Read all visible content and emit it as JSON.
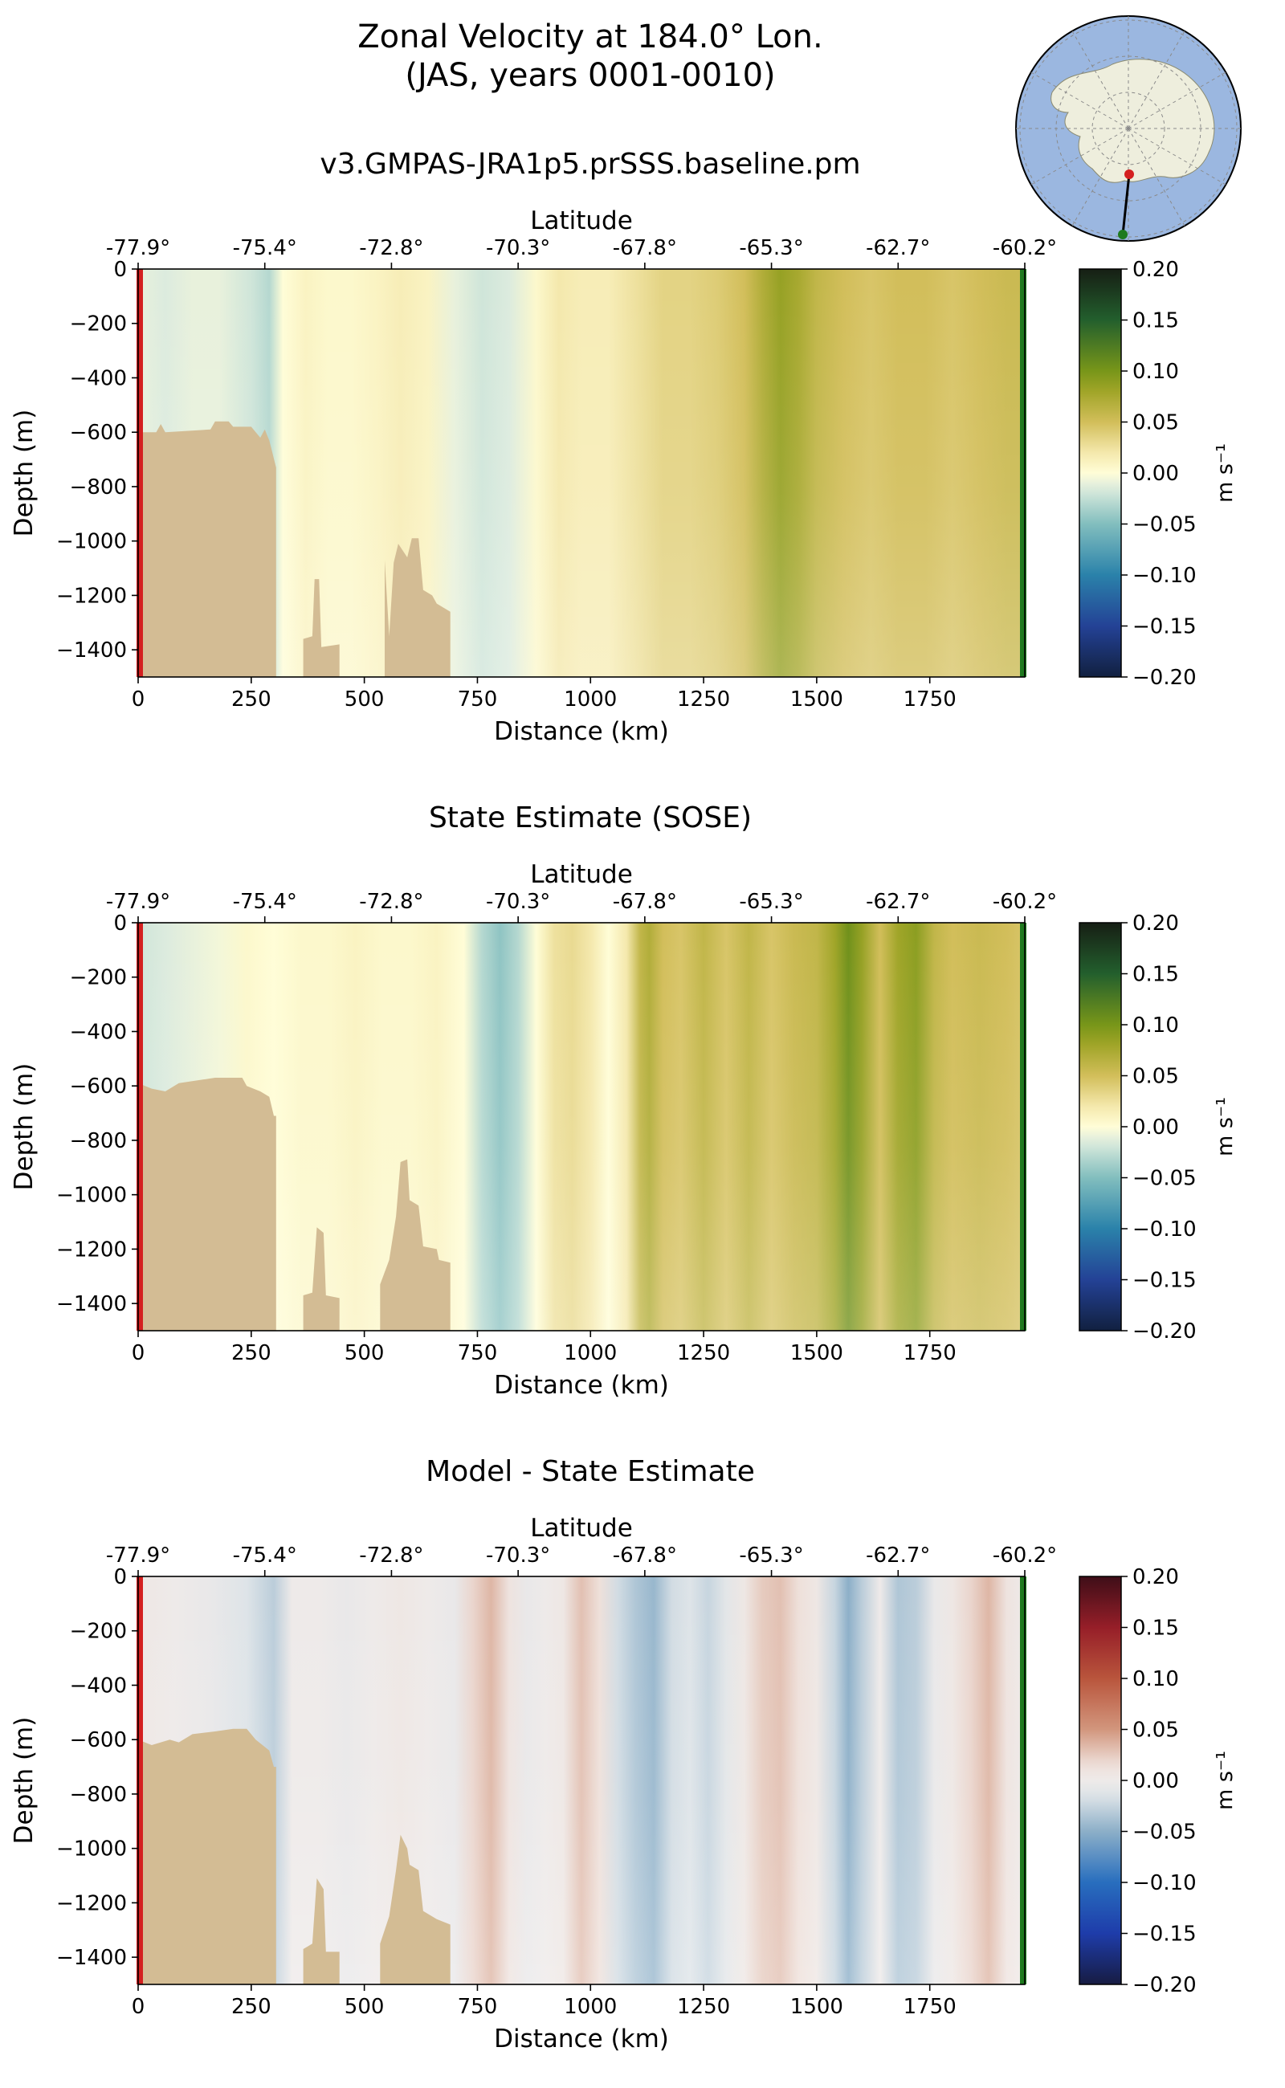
{
  "title_line1": "Zonal Velocity at 184.0° Lon.",
  "title_line2": "(JAS, years 0001-0010)",
  "colors": {
    "land": "#d3bc94",
    "start_marker": "#d42020",
    "end_marker": "#1e7a1e",
    "inset_ocean": "#9bb7e0",
    "inset_land": "#eeeedd"
  },
  "inset_map": {
    "name": "antarctic-section-map"
  },
  "chart_data": [
    {
      "type": "heatmap",
      "title": "v3.GMPAS-JRA1p5.prSSS.baseline.pm",
      "xlabel": "Distance (km)",
      "ylabel": "Depth (m)",
      "top_axis_label": "Latitude",
      "xlim": [
        0,
        1960
      ],
      "ylim": [
        -1500,
        0
      ],
      "xticks": [
        0,
        250,
        500,
        750,
        1000,
        1250,
        1500,
        1750
      ],
      "yticks": [
        0,
        -200,
        -400,
        -600,
        -800,
        -1000,
        -1200,
        -1400
      ],
      "lat_ticks": [
        "-77.9°",
        "-75.4°",
        "-72.8°",
        "-70.3°",
        "-67.8°",
        "-65.3°",
        "-62.7°",
        "-60.2°"
      ],
      "colormap": "delta",
      "colorbar": {
        "label": "m s⁻¹",
        "ticks": [
          0.2,
          0.15,
          0.1,
          0.05,
          0.0,
          -0.05,
          -0.1,
          -0.15,
          -0.2
        ],
        "tick_labels": [
          "0.20",
          "0.15",
          "0.10",
          "0.05",
          "0.00",
          "−0.05",
          "−0.10",
          "−0.15",
          "−0.20"
        ]
      },
      "bathymetry": [
        [
          0,
          -1500
        ],
        [
          0,
          -600
        ],
        [
          40,
          -600
        ],
        [
          50,
          -570
        ],
        [
          60,
          -600
        ],
        [
          160,
          -590
        ],
        [
          170,
          -560
        ],
        [
          200,
          -560
        ],
        [
          210,
          -580
        ],
        [
          250,
          -580
        ],
        [
          270,
          -620
        ],
        [
          280,
          -590
        ],
        [
          290,
          -630
        ],
        [
          305,
          -730
        ],
        [
          305,
          -1500
        ],
        [
          365,
          -1500
        ],
        [
          365,
          -1360
        ],
        [
          385,
          -1350
        ],
        [
          390,
          -1140
        ],
        [
          400,
          -1140
        ],
        [
          405,
          -1390
        ],
        [
          445,
          -1380
        ],
        [
          445,
          -1500
        ],
        [
          545,
          -1500
        ],
        [
          545,
          -1070
        ],
        [
          555,
          -1350
        ],
        [
          565,
          -1080
        ],
        [
          575,
          -1010
        ],
        [
          595,
          -1060
        ],
        [
          605,
          -990
        ],
        [
          620,
          -990
        ],
        [
          630,
          -1180
        ],
        [
          650,
          -1200
        ],
        [
          660,
          -1230
        ],
        [
          690,
          -1260
        ],
        [
          690,
          -1500
        ]
      ],
      "profile_km": [
        0,
        60,
        120,
        180,
        250,
        290,
        320,
        370,
        420,
        470,
        530,
        580,
        640,
        700,
        760,
        820,
        880,
        930,
        980,
        1040,
        1100,
        1160,
        1220,
        1280,
        1340,
        1380,
        1420,
        1460,
        1500,
        1560,
        1620,
        1680,
        1740,
        1800,
        1860,
        1920,
        1960
      ],
      "profile_values": [
        -0.01,
        -0.015,
        -0.01,
        -0.01,
        -0.02,
        -0.03,
        0.0,
        0.01,
        0.005,
        0.005,
        0.01,
        0.015,
        0.01,
        -0.01,
        -0.02,
        -0.015,
        0.005,
        0.02,
        0.015,
        0.015,
        0.025,
        0.035,
        0.035,
        0.04,
        0.05,
        0.07,
        0.085,
        0.075,
        0.06,
        0.05,
        0.045,
        0.05,
        0.05,
        0.045,
        0.05,
        0.055,
        0.055
      ]
    },
    {
      "type": "heatmap",
      "title": "State Estimate (SOSE)",
      "xlabel": "Distance (km)",
      "ylabel": "Depth (m)",
      "top_axis_label": "Latitude",
      "xlim": [
        0,
        1960
      ],
      "ylim": [
        -1500,
        0
      ],
      "xticks": [
        0,
        250,
        500,
        750,
        1000,
        1250,
        1500,
        1750
      ],
      "yticks": [
        0,
        -200,
        -400,
        -600,
        -800,
        -1000,
        -1200,
        -1400
      ],
      "lat_ticks": [
        "-77.9°",
        "-75.4°",
        "-72.8°",
        "-70.3°",
        "-67.8°",
        "-65.3°",
        "-62.7°",
        "-60.2°"
      ],
      "colormap": "delta",
      "colorbar": {
        "label": "m s⁻¹",
        "ticks": [
          0.2,
          0.15,
          0.1,
          0.05,
          0.0,
          -0.05,
          -0.1,
          -0.15,
          -0.2
        ],
        "tick_labels": [
          "0.20",
          "0.15",
          "0.10",
          "0.05",
          "0.00",
          "−0.05",
          "−0.10",
          "−0.15",
          "−0.20"
        ]
      },
      "bathymetry": [
        [
          0,
          -1500
        ],
        [
          0,
          -590
        ],
        [
          30,
          -610
        ],
        [
          60,
          -620
        ],
        [
          90,
          -590
        ],
        [
          130,
          -580
        ],
        [
          170,
          -570
        ],
        [
          230,
          -570
        ],
        [
          240,
          -600
        ],
        [
          270,
          -620
        ],
        [
          290,
          -640
        ],
        [
          300,
          -710
        ],
        [
          305,
          -710
        ],
        [
          305,
          -1500
        ],
        [
          365,
          -1500
        ],
        [
          365,
          -1370
        ],
        [
          385,
          -1360
        ],
        [
          395,
          -1120
        ],
        [
          410,
          -1140
        ],
        [
          415,
          -1370
        ],
        [
          445,
          -1380
        ],
        [
          445,
          -1500
        ],
        [
          535,
          -1500
        ],
        [
          535,
          -1330
        ],
        [
          555,
          -1240
        ],
        [
          570,
          -1080
        ],
        [
          580,
          -880
        ],
        [
          595,
          -870
        ],
        [
          600,
          -1020
        ],
        [
          620,
          -1040
        ],
        [
          630,
          -1190
        ],
        [
          660,
          -1200
        ],
        [
          665,
          -1240
        ],
        [
          690,
          -1250
        ],
        [
          690,
          -1500
        ]
      ],
      "profile_km": [
        0,
        60,
        120,
        180,
        240,
        300,
        360,
        420,
        480,
        540,
        600,
        660,
        720,
        760,
        800,
        840,
        880,
        920,
        960,
        1000,
        1040,
        1080,
        1110,
        1130,
        1160,
        1200,
        1250,
        1300,
        1350,
        1400,
        1450,
        1500,
        1540,
        1570,
        1600,
        1640,
        1680,
        1720,
        1760,
        1800,
        1860,
        1920,
        1960
      ],
      "profile_values": [
        -0.02,
        -0.015,
        -0.01,
        -0.005,
        0.005,
        0.0,
        0.005,
        0.005,
        0.01,
        0.005,
        0.005,
        0.01,
        0.0,
        -0.03,
        -0.045,
        -0.03,
        0.0,
        0.025,
        0.03,
        0.02,
        0.0,
        0.02,
        0.06,
        0.07,
        0.05,
        0.045,
        0.06,
        0.045,
        0.06,
        0.045,
        0.055,
        0.06,
        0.08,
        0.105,
        0.085,
        0.05,
        0.08,
        0.09,
        0.06,
        0.05,
        0.055,
        0.05,
        0.045
      ]
    },
    {
      "type": "heatmap",
      "title": "Model - State Estimate",
      "xlabel": "Distance (km)",
      "ylabel": "Depth (m)",
      "top_axis_label": "Latitude",
      "xlim": [
        0,
        1960
      ],
      "ylim": [
        -1500,
        0
      ],
      "xticks": [
        0,
        250,
        500,
        750,
        1000,
        1250,
        1500,
        1750
      ],
      "yticks": [
        0,
        -200,
        -400,
        -600,
        -800,
        -1000,
        -1200,
        -1400
      ],
      "lat_ticks": [
        "-77.9°",
        "-75.4°",
        "-72.8°",
        "-70.3°",
        "-67.8°",
        "-65.3°",
        "-62.7°",
        "-60.2°"
      ],
      "colormap": "balance",
      "colorbar": {
        "label": "m s⁻¹",
        "ticks": [
          0.2,
          0.15,
          0.1,
          0.05,
          0.0,
          -0.05,
          -0.1,
          -0.15,
          -0.2
        ],
        "tick_labels": [
          "0.20",
          "0.15",
          "0.10",
          "0.05",
          "0.00",
          "−0.05",
          "−0.10",
          "−0.15",
          "−0.20"
        ]
      },
      "bathymetry": [
        [
          0,
          -1500
        ],
        [
          0,
          -600
        ],
        [
          30,
          -620
        ],
        [
          70,
          -600
        ],
        [
          90,
          -610
        ],
        [
          120,
          -580
        ],
        [
          170,
          -570
        ],
        [
          210,
          -560
        ],
        [
          240,
          -560
        ],
        [
          260,
          -600
        ],
        [
          290,
          -640
        ],
        [
          300,
          -700
        ],
        [
          305,
          -700
        ],
        [
          305,
          -1500
        ],
        [
          365,
          -1500
        ],
        [
          365,
          -1370
        ],
        [
          385,
          -1350
        ],
        [
          395,
          -1110
        ],
        [
          410,
          -1150
        ],
        [
          415,
          -1380
        ],
        [
          445,
          -1380
        ],
        [
          445,
          -1500
        ],
        [
          535,
          -1500
        ],
        [
          535,
          -1350
        ],
        [
          555,
          -1250
        ],
        [
          570,
          -1080
        ],
        [
          580,
          -950
        ],
        [
          595,
          -1000
        ],
        [
          600,
          -1060
        ],
        [
          620,
          -1080
        ],
        [
          630,
          -1230
        ],
        [
          660,
          -1260
        ],
        [
          690,
          -1280
        ],
        [
          690,
          -1500
        ]
      ],
      "profile_km": [
        0,
        80,
        160,
        240,
        300,
        340,
        400,
        460,
        520,
        580,
        640,
        700,
        740,
        780,
        820,
        860,
        900,
        940,
        980,
        1020,
        1060,
        1100,
        1140,
        1180,
        1220,
        1260,
        1300,
        1340,
        1380,
        1420,
        1460,
        1500,
        1540,
        1570,
        1600,
        1640,
        1680,
        1720,
        1760,
        1800,
        1840,
        1880,
        1920,
        1960
      ],
      "profile_values": [
        0.005,
        0.0,
        -0.005,
        -0.015,
        -0.03,
        0.0,
        0.0,
        -0.005,
        0.0,
        0.005,
        0.0,
        -0.005,
        0.02,
        0.035,
        0.01,
        -0.005,
        0.0,
        0.005,
        0.03,
        0.015,
        -0.02,
        -0.035,
        -0.045,
        -0.02,
        -0.015,
        -0.025,
        -0.01,
        0.005,
        0.025,
        0.03,
        0.015,
        0.005,
        -0.025,
        -0.05,
        -0.03,
        0.0,
        -0.035,
        -0.03,
        -0.005,
        0.005,
        0.02,
        0.035,
        0.01,
        0.0
      ]
    }
  ]
}
